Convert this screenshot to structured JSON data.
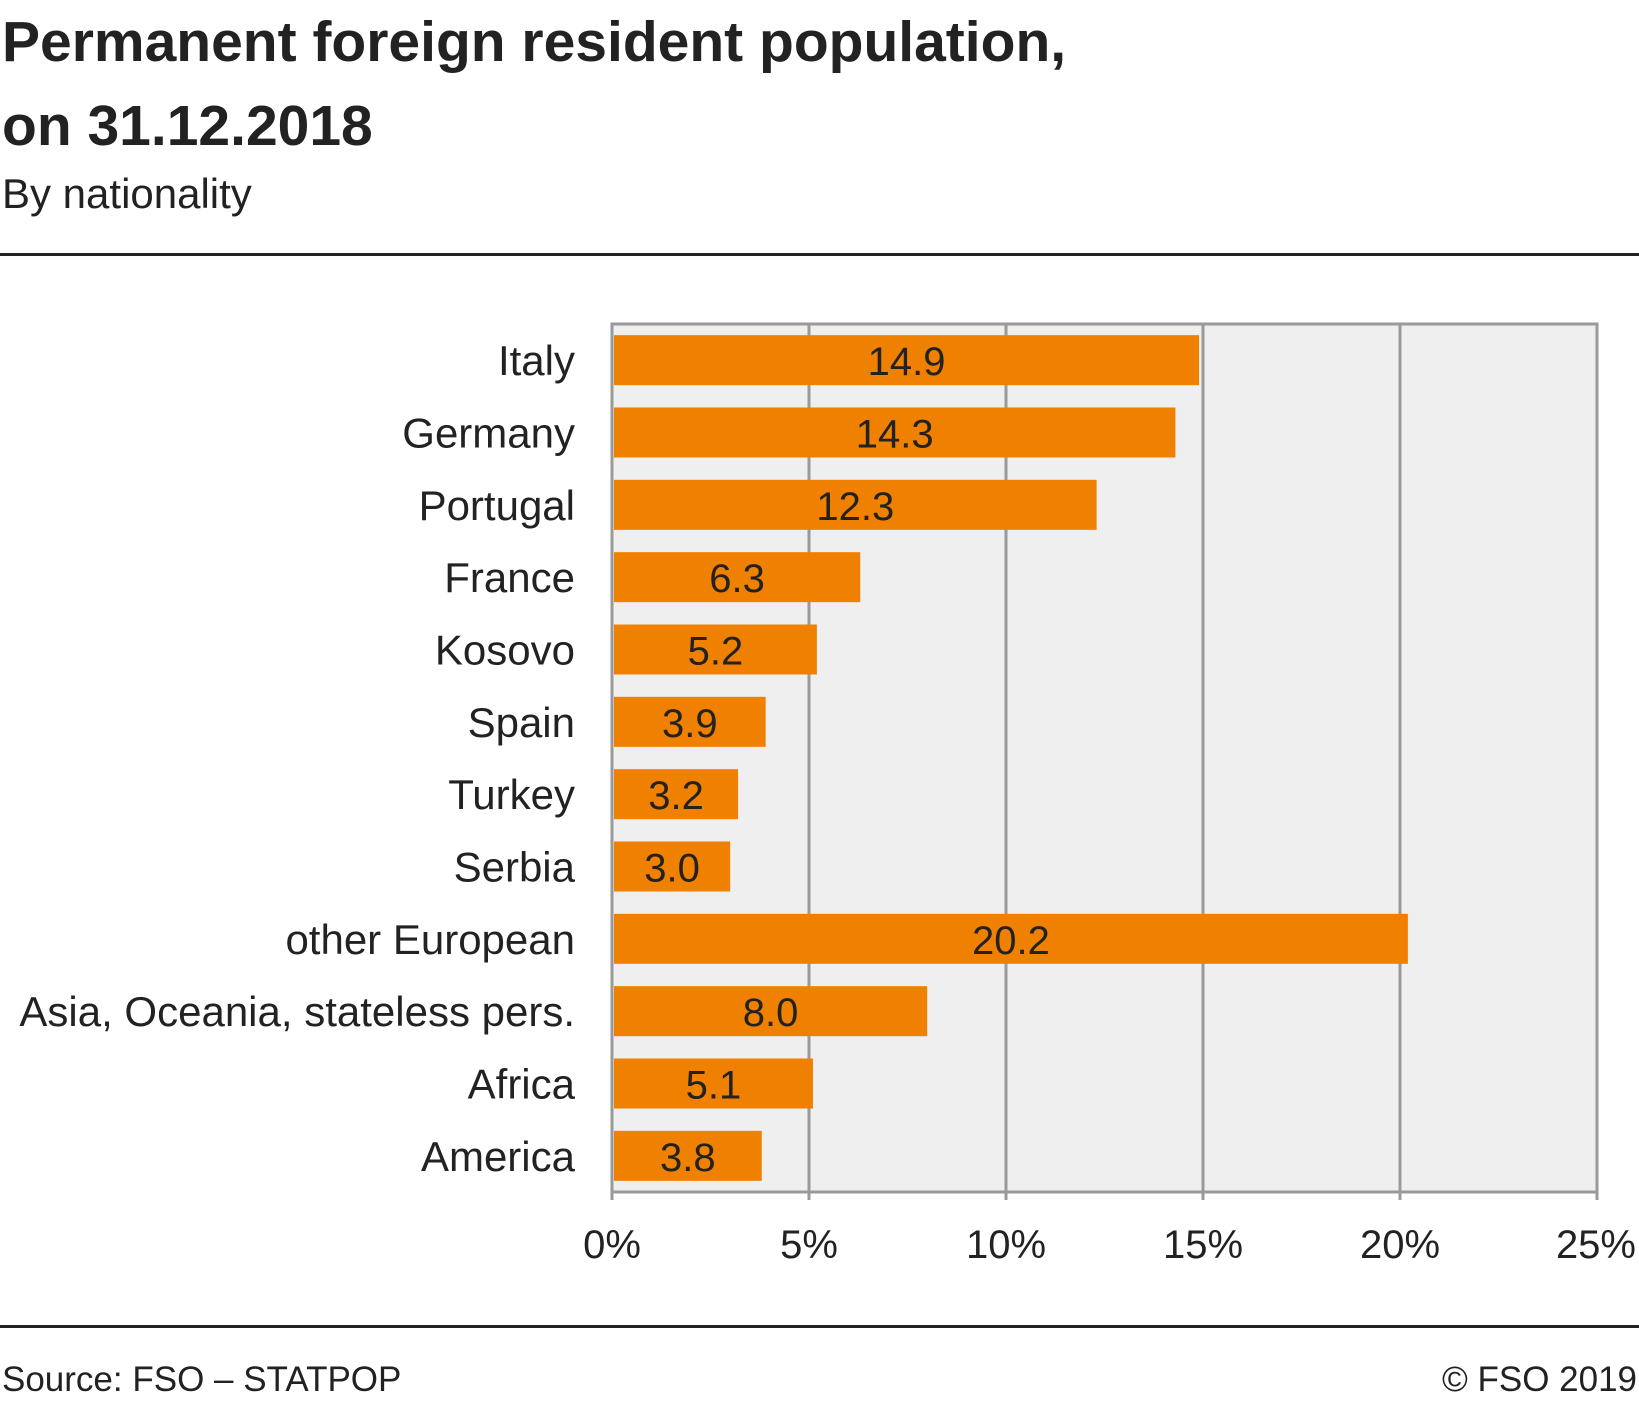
{
  "header": {
    "title_line1": "Permanent foreign resident population,",
    "title_line2": "on 31.12.2018",
    "subtitle": "By nationality"
  },
  "footer": {
    "source": "Source: FSO – STATPOP",
    "copyright": "© FSO 2019"
  },
  "colors": {
    "bar": "#f08000",
    "plot_background": "#efefef",
    "grid": "#9a9a9a"
  },
  "chart_data": {
    "type": "bar",
    "orientation": "horizontal",
    "title": "Permanent foreign resident population, on 31.12.2018",
    "subtitle": "By nationality",
    "categories": [
      "Italy",
      "Germany",
      "Portugal",
      "France",
      "Kosovo",
      "Spain",
      "Turkey",
      "Serbia",
      "other European",
      "Asia, Oceania, stateless pers.",
      "Africa",
      "America"
    ],
    "values": [
      14.9,
      14.3,
      12.3,
      6.3,
      5.2,
      3.9,
      3.2,
      3.0,
      20.2,
      8.0,
      5.1,
      3.8
    ],
    "value_labels": [
      "14.9",
      "14.3",
      "12.3",
      "6.3",
      "5.2",
      "3.9",
      "3.2",
      "3.0",
      "20.2",
      "8.0",
      "5.1",
      "3.8"
    ],
    "xlim": [
      0,
      25
    ],
    "xticks": [
      0,
      5,
      10,
      15,
      20,
      25
    ],
    "xtick_labels": [
      "0%",
      "5%",
      "10%",
      "15%",
      "20%",
      "25%"
    ],
    "xlabel": "",
    "ylabel": "",
    "grid": true,
    "legend": "none"
  }
}
